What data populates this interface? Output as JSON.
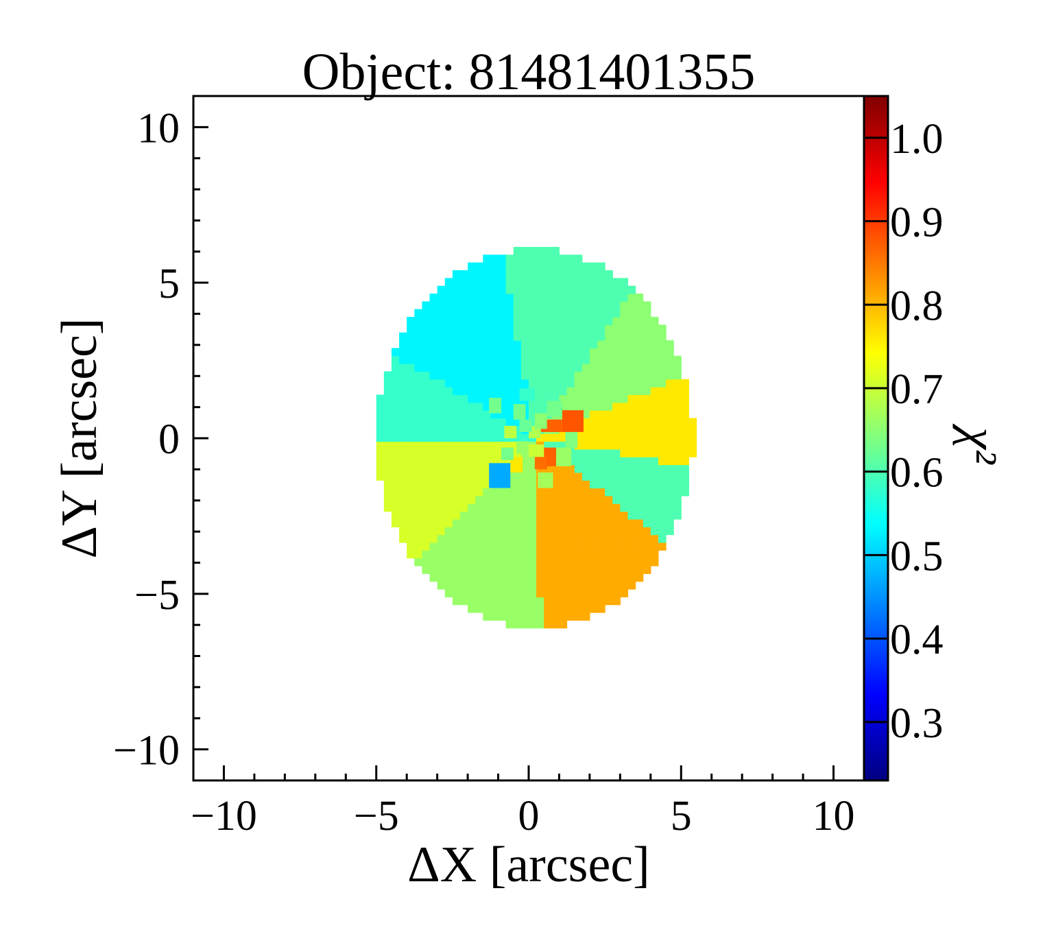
{
  "chart_data": {
    "type": "heatmap",
    "title": "Object: 81481401355",
    "xlabel": "ΔX [arcsec]",
    "ylabel": "ΔY [arcsec]",
    "colorbar_label": "χ²",
    "xlim": [
      -11,
      11
    ],
    "ylim": [
      -11,
      11
    ],
    "x_ticks": [
      -10,
      -5,
      0,
      5,
      10
    ],
    "x_tick_labels": [
      "−10",
      "−5",
      "0",
      "5",
      "10"
    ],
    "y_ticks": [
      -10,
      -5,
      0,
      5,
      10
    ],
    "y_tick_labels": [
      "−10",
      "−5",
      "0",
      "5",
      "10"
    ],
    "colorbar_range": [
      0.23,
      1.05
    ],
    "colorbar_ticks": [
      0.3,
      0.4,
      0.5,
      0.6,
      0.7,
      0.8,
      0.9,
      1.0
    ],
    "colorbar_tick_labels": [
      "0.3",
      "0.4",
      "0.5",
      "0.6",
      "0.7",
      "0.8",
      "0.9",
      "1.0"
    ],
    "colormap": "jet",
    "grid": false,
    "footprint": {
      "center": [
        0.2,
        0.0
      ],
      "semi_axis_x": 5.2,
      "semi_axis_y": 6.1
    },
    "outer_bins": [
      {
        "angle_from_deg": -10,
        "angle_to_deg": 22,
        "value": 0.76
      },
      {
        "angle_from_deg": 22,
        "angle_to_deg": 56,
        "value": 0.65
      },
      {
        "angle_from_deg": 56,
        "angle_to_deg": 100,
        "value": 0.6
      },
      {
        "angle_from_deg": 100,
        "angle_to_deg": 150,
        "value": 0.53
      },
      {
        "angle_from_deg": 150,
        "angle_to_deg": 182,
        "value": 0.58
      },
      {
        "angle_from_deg": 182,
        "angle_to_deg": 225,
        "value": 0.71
      },
      {
        "angle_from_deg": 225,
        "angle_to_deg": 272,
        "value": 0.66
      },
      {
        "angle_from_deg": 272,
        "angle_to_deg": 322,
        "value": 0.81
      },
      {
        "angle_from_deg": 322,
        "angle_to_deg": 350,
        "value": 0.6
      }
    ],
    "inner_cells": [
      {
        "x": [
          -1.3,
          -0.6
        ],
        "y": [
          -1.6,
          -0.8
        ],
        "value": 0.47
      },
      {
        "x": [
          1.1,
          1.8
        ],
        "y": [
          0.2,
          0.9
        ],
        "value": 0.88
      },
      {
        "x": [
          0.4,
          1.1
        ],
        "y": [
          0.2,
          0.6
        ],
        "value": 0.87
      },
      {
        "x": [
          0.5,
          0.9
        ],
        "y": [
          -0.9,
          -0.3
        ],
        "value": 0.87
      },
      {
        "x": [
          0.2,
          0.6
        ],
        "y": [
          -1.0,
          -0.6
        ],
        "value": 0.86
      },
      {
        "x": [
          -0.6,
          -0.2
        ],
        "y": [
          -1.1,
          -0.6
        ],
        "value": 0.76
      },
      {
        "x": [
          -0.9,
          -0.5
        ],
        "y": [
          -0.7,
          -0.3
        ],
        "value": 0.63
      },
      {
        "x": [
          -0.4,
          0.0
        ],
        "y": [
          -0.5,
          -0.1
        ],
        "value": 0.66
      },
      {
        "x": [
          0.0,
          0.5
        ],
        "y": [
          -0.6,
          -0.2
        ],
        "value": 0.7
      },
      {
        "x": [
          -0.8,
          -0.4
        ],
        "y": [
          0.0,
          0.4
        ],
        "value": 0.69
      },
      {
        "x": [
          -0.5,
          -0.1
        ],
        "y": [
          0.6,
          1.1
        ],
        "value": 0.63
      },
      {
        "x": [
          0.6,
          1.1
        ],
        "y": [
          0.7,
          1.2
        ],
        "value": 0.63
      },
      {
        "x": [
          0.0,
          0.4
        ],
        "y": [
          0.0,
          0.4
        ],
        "value": 0.68
      },
      {
        "x": [
          0.2,
          0.6
        ],
        "y": [
          0.3,
          0.8
        ],
        "value": 0.65
      },
      {
        "x": [
          -0.3,
          0.1
        ],
        "y": [
          0.2,
          0.6
        ],
        "value": 0.62
      },
      {
        "x": [
          -1.3,
          -0.9
        ],
        "y": [
          0.8,
          1.3
        ],
        "value": 0.63
      },
      {
        "x": [
          0.9,
          1.4
        ],
        "y": [
          -0.9,
          -0.3
        ],
        "value": 0.66
      },
      {
        "x": [
          0.3,
          0.8
        ],
        "y": [
          -1.6,
          -1.1
        ],
        "value": 0.67
      },
      {
        "x": [
          -0.3,
          0.2
        ],
        "y": [
          1.2,
          1.6
        ],
        "value": 0.58
      },
      {
        "x": [
          1.2,
          1.6
        ],
        "y": [
          -0.3,
          0.2
        ],
        "value": 0.64
      }
    ]
  }
}
